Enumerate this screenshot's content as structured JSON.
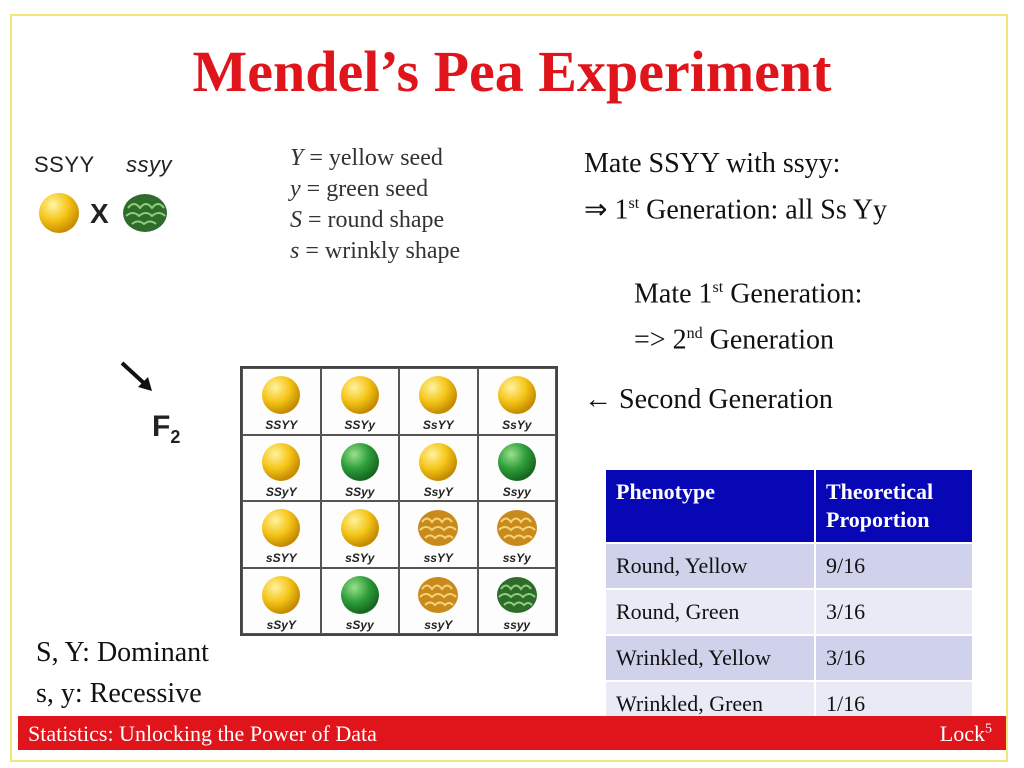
{
  "slide": {
    "title": "Mendel’s Pea Experiment"
  },
  "parents": {
    "left_label": "SSYY",
    "right_label": "ssyy",
    "cross_symbol": "X",
    "left_pea": "round-yellow-pea",
    "right_pea": "wrinkled-green-pea"
  },
  "legend": {
    "items": [
      {
        "symbol": "Y",
        "text": " =  yellow seed"
      },
      {
        "symbol": "y",
        "text": " = green seed"
      },
      {
        "symbol": "S",
        "text": " = round shape"
      },
      {
        "symbol": "s",
        "text": " = wrinkly shape"
      }
    ]
  },
  "f2": {
    "label": "F",
    "sub": "2"
  },
  "punnett": {
    "cells": [
      {
        "label": "SSYY",
        "pea": "round-yellow"
      },
      {
        "label": "SSYy",
        "pea": "round-yellow"
      },
      {
        "label": "SsYY",
        "pea": "round-yellow"
      },
      {
        "label": "SsYy",
        "pea": "round-yellow"
      },
      {
        "label": "SSyY",
        "pea": "round-yellow"
      },
      {
        "label": "SSyy",
        "pea": "round-green"
      },
      {
        "label": "SsyY",
        "pea": "round-yellow"
      },
      {
        "label": "Ssyy",
        "pea": "round-green"
      },
      {
        "label": "sSYY",
        "pea": "round-yellow"
      },
      {
        "label": "sSYy",
        "pea": "round-yellow"
      },
      {
        "label": "ssYY",
        "pea": "wrinkled-yellow"
      },
      {
        "label": "ssYy",
        "pea": "wrinkled-yellow"
      },
      {
        "label": "sSyY",
        "pea": "round-yellow"
      },
      {
        "label": "sSyy",
        "pea": "round-green"
      },
      {
        "label": "ssyY",
        "pea": "wrinkled-yellow"
      },
      {
        "label": "ssyy",
        "pea": "wrinkled-green"
      }
    ]
  },
  "text": {
    "mate_line1": "Mate SSYY with ssyy:",
    "gen1_arrow": "⇒",
    "gen1_pre": " 1",
    "gen1_sup": "st",
    "gen1_post": " Generation: all Ss Yy",
    "mate2_pre": "Mate 1",
    "mate2_sup": "st",
    "mate2_post": " Generation:",
    "gen2_pre": "=> 2",
    "gen2_sup": "nd",
    "gen2_post": " Generation",
    "second_arrow": "←",
    "second_gen": " Second Generation",
    "dominant": "S, Y: Dominant",
    "recessive": "s, y: Recessive"
  },
  "table": {
    "headers": [
      "Phenotype",
      "Theoretical Proportion"
    ],
    "rows": [
      [
        "Round, Yellow",
        "9/16"
      ],
      [
        "Round, Green",
        "3/16"
      ],
      [
        "Wrinkled, Yellow",
        "3/16"
      ],
      [
        "Wrinkled, Green",
        "1/16"
      ]
    ]
  },
  "footer": {
    "left": "Statistics: Unlocking the Power of Data",
    "right": "Lock",
    "right_sup": "5"
  },
  "colors": {
    "title": "#e0141b",
    "footer_bg": "#e0141b",
    "table_header": "#0707b6",
    "row_odd": "#cfd2ea",
    "row_even": "#e9eaf5",
    "pea_yellow": "#f5c518",
    "pea_green": "#2e9e3a",
    "pea_wrinkled_yellow": "#c98a1c",
    "pea_wrinkled_green": "#2f6b2a"
  }
}
